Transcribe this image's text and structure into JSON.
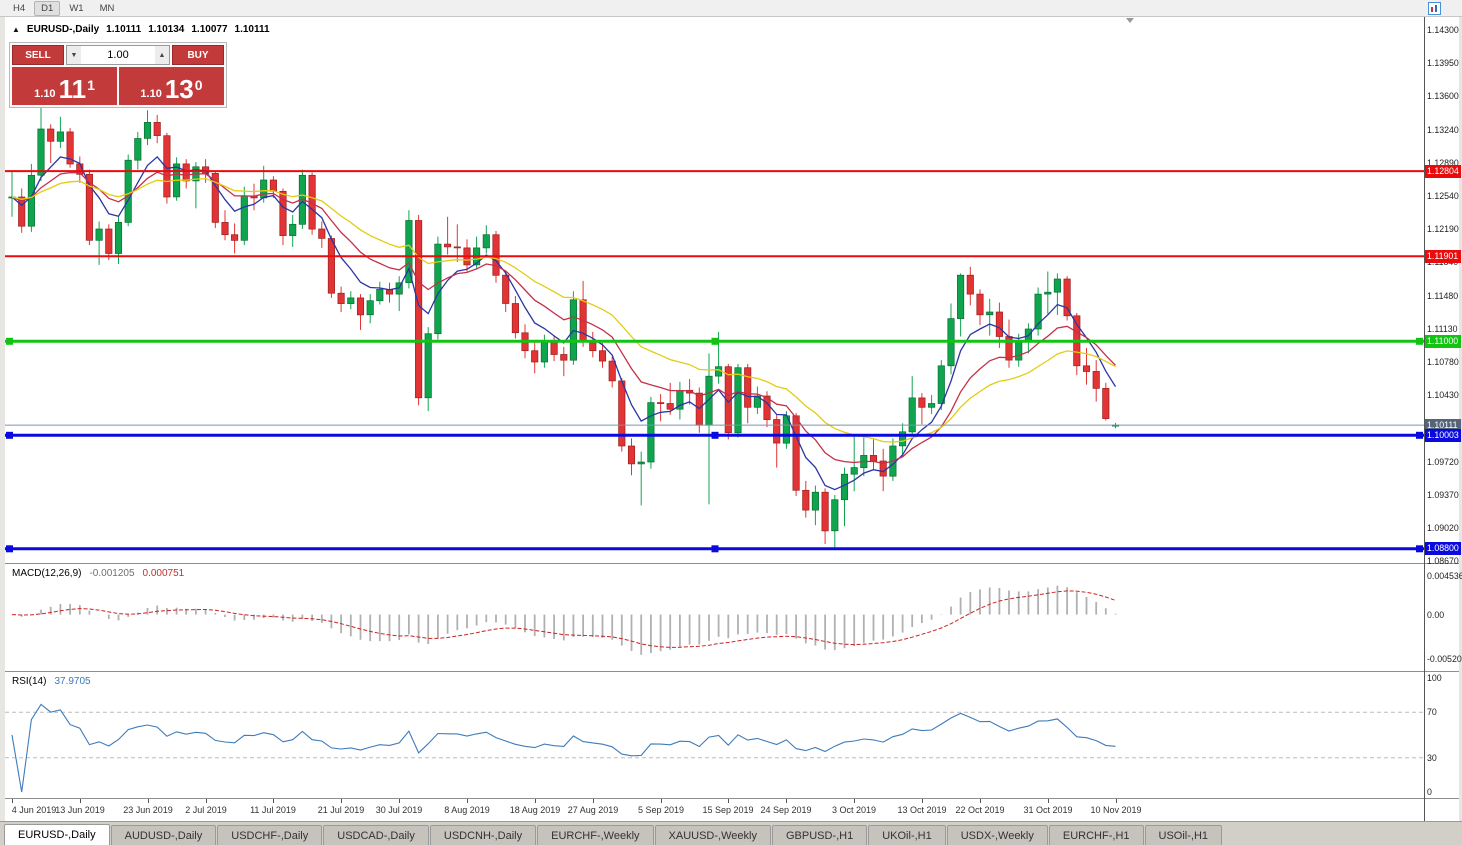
{
  "window": {
    "toolbar": {
      "timeframes": [
        {
          "label": "H4",
          "active": false
        },
        {
          "label": "D1",
          "active": true
        },
        {
          "label": "W1",
          "active": false
        },
        {
          "label": "MN",
          "active": false
        }
      ]
    },
    "tabs": [
      {
        "label": "EURUSD-,Daily",
        "active": true
      },
      {
        "label": "AUDUSD-,Daily",
        "active": false
      },
      {
        "label": "USDCHF-,Daily",
        "active": false
      },
      {
        "label": "USDCAD-,Daily",
        "active": false
      },
      {
        "label": "USDCNH-,Daily",
        "active": false
      },
      {
        "label": "EURCHF-,Weekly",
        "active": false
      },
      {
        "label": "XAUUSD-,Weekly",
        "active": false
      },
      {
        "label": "GBPUSD-,H1",
        "active": false
      },
      {
        "label": "UKOil-,H1",
        "active": false
      },
      {
        "label": "USDX-,Weekly",
        "active": false
      },
      {
        "label": "EURCHF-,H1",
        "active": false
      },
      {
        "label": "USOil-,H1",
        "active": false
      }
    ]
  },
  "chart_header": {
    "symbol": "EURUSD-,Daily",
    "open": "1.10111",
    "high": "1.10134",
    "low": "1.10077",
    "close": "1.10111"
  },
  "trade_panel": {
    "sell_button": "SELL",
    "buy_button": "BUY",
    "volume": "1.00",
    "sell_price": {
      "small": "1.10",
      "big": "11",
      "sup": "1"
    },
    "buy_price": {
      "small": "1.10",
      "big": "13",
      "sup": "0"
    }
  },
  "icons": {
    "panel_toggle": "▲",
    "volume_down": "▼",
    "volume_up": "▲"
  },
  "macd_panel": {
    "label": "MACD(12,26,9)",
    "value_main": "-0.001205",
    "value_signal": "0.000751",
    "axis_labels": [
      {
        "text": "0.004536",
        "value": 0.004536
      },
      {
        "text": "0.00",
        "value": 0
      },
      {
        "text": "-0.005205",
        "value": -0.005205
      }
    ]
  },
  "rsi_panel": {
    "label": "RSI(14)",
    "value": "37.9705",
    "axis_labels": [
      {
        "text": "100",
        "value": 100
      },
      {
        "text": "70",
        "value": 70
      },
      {
        "text": "30",
        "value": 30
      },
      {
        "text": "0",
        "value": 0
      }
    ],
    "level_lines": [
      70,
      30
    ]
  },
  "price_axis": {
    "labels": [
      "1.14300",
      "1.13950",
      "1.13600",
      "1.13240",
      "1.12890",
      "1.12540",
      "1.12190",
      "1.11840",
      "1.11480",
      "1.11130",
      "1.10780",
      "1.10430",
      "1.10080",
      "1.09720",
      "1.09370",
      "1.09020",
      "1.08670"
    ],
    "tags": [
      {
        "text": "1.12804",
        "price": 1.12804,
        "bg": "#ea0c0c",
        "fg": "#ffffff"
      },
      {
        "text": "1.11901",
        "price": 1.11901,
        "bg": "#ea0c0c",
        "fg": "#ffffff"
      },
      {
        "text": "1.11000",
        "price": 1.11,
        "bg": "#12c412",
        "fg": "#ffffff"
      },
      {
        "text": "1.10111",
        "price": 1.10111,
        "bg": "#54657a",
        "fg": "#ffffff"
      },
      {
        "text": "1.10003",
        "price": 1.10003,
        "bg": "#0a0ae0",
        "fg": "#ffffff"
      },
      {
        "text": "1.08800",
        "price": 1.088,
        "bg": "#0a0ae0",
        "fg": "#ffffff"
      }
    ]
  },
  "date_axis": {
    "labels": [
      {
        "text": "4 Jun 2019",
        "index": 0
      },
      {
        "text": "13 Jun 2019",
        "index": 7
      },
      {
        "text": "23 Jun 2019",
        "index": 14
      },
      {
        "text": "2 Jul 2019",
        "index": 20
      },
      {
        "text": "11 Jul 2019",
        "index": 27
      },
      {
        "text": "21 Jul 2019",
        "index": 34
      },
      {
        "text": "30 Jul 2019",
        "index": 40
      },
      {
        "text": "8 Aug 2019",
        "index": 47
      },
      {
        "text": "18 Aug 2019",
        "index": 54
      },
      {
        "text": "27 Aug 2019",
        "index": 60
      },
      {
        "text": "5 Sep 2019",
        "index": 67
      },
      {
        "text": "15 Sep 2019",
        "index": 74
      },
      {
        "text": "24 Sep 2019",
        "index": 80
      },
      {
        "text": "3 Oct 2019",
        "index": 87
      },
      {
        "text": "13 Oct 2019",
        "index": 94
      },
      {
        "text": "22 Oct 2019",
        "index": 100
      },
      {
        "text": "31 Oct 2019",
        "index": 107
      },
      {
        "text": "10 Nov 2019",
        "index": 114
      }
    ]
  },
  "chart_data": {
    "type": "candlestick",
    "symbol": "EURUSD-",
    "timeframe": "Daily",
    "ohlc_current": {
      "open": 1.10111,
      "high": 1.10134,
      "low": 1.10077,
      "close": 1.10111
    },
    "bid_price": 1.10111,
    "price_view": {
      "min": 1.08649,
      "max": 1.14438
    },
    "horizontal_lines": [
      {
        "price": 1.12804,
        "color": "#ea0c0c",
        "width": 2,
        "handles": false
      },
      {
        "price": 1.11901,
        "color": "#ea0c0c",
        "width": 2,
        "handles": false
      },
      {
        "price": 1.11,
        "color": "#12c412",
        "width": 3,
        "handles": true
      },
      {
        "price": 1.10003,
        "color": "#0a0ae0",
        "width": 3,
        "handles": true
      },
      {
        "price": 1.088,
        "color": "#0a0ae0",
        "width": 3,
        "handles": true
      }
    ],
    "moving_averages": [
      {
        "period": 6,
        "color": "#2b35a5",
        "name": "fast"
      },
      {
        "period": 13,
        "color": "#c62f4a",
        "name": "medium"
      },
      {
        "period": 24,
        "color": "#e3cc12",
        "name": "slow"
      }
    ],
    "colors": {
      "up": "#0fa54e",
      "up_edge": "#076e30",
      "down": "#e23434",
      "down_edge": "#9c1f1f",
      "bid_line": "#7894b0"
    },
    "macd": {
      "fast": 12,
      "slow": 26,
      "signal": 9,
      "histogram_color": "#b0b0b0",
      "signal_color": "#cc2222",
      "range": [
        -0.0058,
        0.005
      ]
    },
    "rsi": {
      "period": 14,
      "color": "#3f7cba",
      "range": [
        0,
        100
      ]
    },
    "candles": [
      [
        1.1252,
        1.128,
        1.1232,
        1.1253
      ],
      [
        1.1253,
        1.1262,
        1.1215,
        1.1222
      ],
      [
        1.1222,
        1.1288,
        1.1216,
        1.1276
      ],
      [
        1.1276,
        1.1348,
        1.127,
        1.1325
      ],
      [
        1.1325,
        1.133,
        1.1289,
        1.1312
      ],
      [
        1.1312,
        1.1338,
        1.1305,
        1.1322
      ],
      [
        1.1322,
        1.1326,
        1.1284,
        1.1288
      ],
      [
        1.1288,
        1.1296,
        1.1268,
        1.1277
      ],
      [
        1.1277,
        1.1282,
        1.1202,
        1.1207
      ],
      [
        1.1207,
        1.1227,
        1.1181,
        1.1219
      ],
      [
        1.1219,
        1.1224,
        1.1186,
        1.1193
      ],
      [
        1.1193,
        1.1233,
        1.1182,
        1.1226
      ],
      [
        1.1226,
        1.1298,
        1.1222,
        1.1292
      ],
      [
        1.1292,
        1.1322,
        1.1282,
        1.1315
      ],
      [
        1.1315,
        1.1345,
        1.1308,
        1.1332
      ],
      [
        1.1332,
        1.134,
        1.131,
        1.1318
      ],
      [
        1.1318,
        1.1321,
        1.1246,
        1.1253
      ],
      [
        1.1253,
        1.1295,
        1.1249,
        1.1288
      ],
      [
        1.1288,
        1.1293,
        1.1262,
        1.127
      ],
      [
        1.127,
        1.129,
        1.1241,
        1.1285
      ],
      [
        1.1285,
        1.1293,
        1.1268,
        1.1278
      ],
      [
        1.1278,
        1.1281,
        1.122,
        1.1226
      ],
      [
        1.1226,
        1.1239,
        1.1207,
        1.1213
      ],
      [
        1.1213,
        1.1225,
        1.1193,
        1.1207
      ],
      [
        1.1207,
        1.1264,
        1.1202,
        1.1254
      ],
      [
        1.1254,
        1.1267,
        1.1239,
        1.1252
      ],
      [
        1.1252,
        1.1286,
        1.1247,
        1.1271
      ],
      [
        1.1271,
        1.1275,
        1.1252,
        1.1259
      ],
      [
        1.1259,
        1.1262,
        1.1202,
        1.1212
      ],
      [
        1.1212,
        1.1234,
        1.12,
        1.1224
      ],
      [
        1.1224,
        1.1282,
        1.1219,
        1.1276
      ],
      [
        1.1276,
        1.1279,
        1.1213,
        1.1219
      ],
      [
        1.1219,
        1.1227,
        1.1199,
        1.1209
      ],
      [
        1.1209,
        1.1212,
        1.1146,
        1.1151
      ],
      [
        1.1151,
        1.1158,
        1.1131,
        1.114
      ],
      [
        1.114,
        1.1153,
        1.1134,
        1.1146
      ],
      [
        1.1146,
        1.115,
        1.1112,
        1.1128
      ],
      [
        1.1128,
        1.115,
        1.1119,
        1.1143
      ],
      [
        1.1143,
        1.1163,
        1.1139,
        1.1155
      ],
      [
        1.1155,
        1.1162,
        1.1141,
        1.115
      ],
      [
        1.115,
        1.1169,
        1.1132,
        1.1162
      ],
      [
        1.1162,
        1.1239,
        1.1156,
        1.1228
      ],
      [
        1.1228,
        1.1234,
        1.1032,
        1.104
      ],
      [
        1.104,
        1.1115,
        1.1026,
        1.1108
      ],
      [
        1.1108,
        1.1211,
        1.1102,
        1.1203
      ],
      [
        1.1203,
        1.1232,
        1.1192,
        1.12
      ],
      [
        1.12,
        1.1224,
        1.1184,
        1.1199
      ],
      [
        1.1199,
        1.1208,
        1.1174,
        1.1181
      ],
      [
        1.1181,
        1.1211,
        1.1176,
        1.1199
      ],
      [
        1.1199,
        1.1223,
        1.1193,
        1.1213
      ],
      [
        1.1213,
        1.1217,
        1.1162,
        1.117
      ],
      [
        1.117,
        1.1175,
        1.1131,
        1.114
      ],
      [
        1.114,
        1.1148,
        1.1103,
        1.1109
      ],
      [
        1.1109,
        1.1118,
        1.1082,
        1.109
      ],
      [
        1.109,
        1.11,
        1.1066,
        1.1078
      ],
      [
        1.1078,
        1.1107,
        1.1072,
        1.1099
      ],
      [
        1.1099,
        1.1106,
        1.1079,
        1.1086
      ],
      [
        1.1086,
        1.1094,
        1.1063,
        1.108
      ],
      [
        1.108,
        1.1153,
        1.1075,
        1.1144
      ],
      [
        1.1144,
        1.1164,
        1.1094,
        1.1101
      ],
      [
        1.1101,
        1.111,
        1.1083,
        1.109
      ],
      [
        1.109,
        1.1098,
        1.1072,
        1.1079
      ],
      [
        1.1079,
        1.1084,
        1.1051,
        1.1058
      ],
      [
        1.1058,
        1.1061,
        1.0983,
        1.0989
      ],
      [
        1.0989,
        1.0997,
        1.0958,
        1.097
      ],
      [
        1.097,
        1.0983,
        1.0926,
        1.0972
      ],
      [
        1.0972,
        1.1041,
        1.0965,
        1.1035
      ],
      [
        1.1035,
        1.1044,
        1.1015,
        1.1034
      ],
      [
        1.1034,
        1.1056,
        1.1022,
        1.1028
      ],
      [
        1.1028,
        1.1057,
        1.1017,
        1.1048
      ],
      [
        1.1048,
        1.106,
        1.1033,
        1.1045
      ],
      [
        1.1045,
        1.1051,
        1.1003,
        1.1011
      ],
      [
        1.1011,
        1.1087,
        1.0927,
        1.1063
      ],
      [
        1.1063,
        1.111,
        1.1055,
        1.1073
      ],
      [
        1.1073,
        1.1076,
        1.0996,
        1.1003
      ],
      [
        1.1003,
        1.1076,
        1.0998,
        1.1072
      ],
      [
        1.1072,
        1.1076,
        1.1013,
        1.103
      ],
      [
        1.103,
        1.1052,
        1.1023,
        1.1042
      ],
      [
        1.1042,
        1.1047,
        1.1009,
        1.1017
      ],
      [
        1.1017,
        1.1022,
        1.0966,
        1.0992
      ],
      [
        1.0992,
        1.1026,
        1.0986,
        1.1021
      ],
      [
        1.1021,
        1.1024,
        1.0936,
        1.0942
      ],
      [
        1.0942,
        1.0952,
        1.0913,
        1.0921
      ],
      [
        1.0921,
        1.0947,
        1.0905,
        1.094
      ],
      [
        1.094,
        1.0944,
        1.0885,
        1.0899
      ],
      [
        1.0899,
        1.0937,
        1.0879,
        1.0932
      ],
      [
        1.0932,
        1.0966,
        1.0904,
        1.0959
      ],
      [
        1.0959,
        1.0999,
        1.0941,
        1.0966
      ],
      [
        1.0966,
        1.0998,
        1.0957,
        1.0979
      ],
      [
        1.0979,
        1.0996,
        1.0963,
        1.0973
      ],
      [
        1.0973,
        1.0986,
        1.0941,
        1.0957
      ],
      [
        1.0957,
        1.0997,
        1.0952,
        1.0989
      ],
      [
        1.0989,
        1.1013,
        1.0977,
        1.1004
      ],
      [
        1.1004,
        1.1063,
        1.1001,
        1.104
      ],
      [
        1.104,
        1.1045,
        1.1012,
        1.103
      ],
      [
        1.103,
        1.1043,
        1.1023,
        1.1034
      ],
      [
        1.1034,
        1.108,
        1.1027,
        1.1074
      ],
      [
        1.1074,
        1.114,
        1.1065,
        1.1124
      ],
      [
        1.1124,
        1.1172,
        1.1105,
        1.117
      ],
      [
        1.117,
        1.1179,
        1.1138,
        1.115
      ],
      [
        1.115,
        1.1155,
        1.1117,
        1.1128
      ],
      [
        1.1128,
        1.1145,
        1.1106,
        1.1131
      ],
      [
        1.1131,
        1.1141,
        1.1093,
        1.1105
      ],
      [
        1.1105,
        1.1123,
        1.1072,
        1.108
      ],
      [
        1.108,
        1.1108,
        1.1073,
        1.1099
      ],
      [
        1.1099,
        1.1119,
        1.1087,
        1.1113
      ],
      [
        1.1113,
        1.1157,
        1.1106,
        1.115
      ],
      [
        1.115,
        1.1174,
        1.1129,
        1.1152
      ],
      [
        1.1152,
        1.1172,
        1.1128,
        1.1166
      ],
      [
        1.1166,
        1.1169,
        1.1122,
        1.1127
      ],
      [
        1.1127,
        1.113,
        1.1064,
        1.1074
      ],
      [
        1.1074,
        1.1093,
        1.1054,
        1.1068
      ],
      [
        1.1068,
        1.108,
        1.1036,
        1.105
      ],
      [
        1.105,
        1.1056,
        1.1016,
        1.1018
      ],
      [
        1.10111,
        1.10134,
        1.10077,
        1.10111
      ]
    ]
  }
}
